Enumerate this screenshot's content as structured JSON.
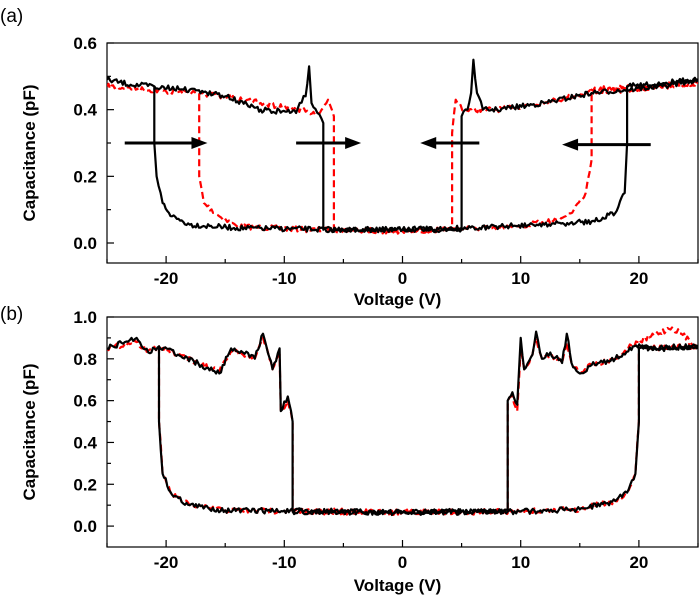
{
  "chart_data": [
    {
      "panel_label": "(a)",
      "type": "line",
      "xlabel": "Voltage (V)",
      "ylabel": "Capacitance (pF)",
      "xlim": [
        -25,
        25
      ],
      "ylim": [
        -0.06,
        0.6
      ],
      "xticks": [
        -20,
        -10,
        0,
        10,
        20
      ],
      "yticks": [
        0.0,
        0.2,
        0.4,
        0.6
      ],
      "ytick_labels": [
        "0.0",
        "0.2",
        "0.4",
        "0.6"
      ],
      "grid": false,
      "series": [
        {
          "color": "#000000",
          "style": "solid",
          "points": [
            [
              -25,
              0.49
            ],
            [
              -23,
              0.475
            ],
            [
              -21,
              0.47
            ],
            [
              -21,
              0.3
            ],
            [
              -20.8,
              0.2
            ],
            [
              -20.3,
              0.12
            ],
            [
              -19.5,
              0.08
            ],
            [
              -18,
              0.055
            ],
            [
              -14,
              0.045
            ],
            [
              -5,
              0.04
            ],
            [
              0,
              0.04
            ],
            [
              5,
              0.04
            ],
            [
              5,
              0.38
            ],
            [
              5.5,
              0.4
            ],
            [
              5.8,
              0.45
            ],
            [
              6,
              0.55
            ],
            [
              6.3,
              0.45
            ],
            [
              6.8,
              0.4
            ],
            [
              8,
              0.4
            ],
            [
              12,
              0.42
            ],
            [
              16,
              0.45
            ],
            [
              19,
              0.46
            ],
            [
              22,
              0.47
            ],
            [
              25,
              0.49
            ],
            [
              25,
              0.49
            ],
            [
              19,
              0.47
            ],
            [
              19,
              0.3
            ],
            [
              18.8,
              0.15
            ],
            [
              18,
              0.09
            ],
            [
              16,
              0.065
            ],
            [
              12,
              0.055
            ],
            [
              5,
              0.045
            ],
            [
              0,
              0.04
            ],
            [
              -6.7,
              0.04
            ],
            [
              -6.7,
              0.36
            ],
            [
              -7.2,
              0.39
            ],
            [
              -7.7,
              0.42
            ],
            [
              -7.9,
              0.53
            ],
            [
              -8.2,
              0.44
            ],
            [
              -8.7,
              0.42
            ],
            [
              -9,
              0.39
            ],
            [
              -12,
              0.4
            ],
            [
              -15,
              0.44
            ],
            [
              -18,
              0.46
            ],
            [
              -21,
              0.47
            ]
          ]
        },
        {
          "color": "#ff0000",
          "style": "dashed",
          "points": [
            [
              -25,
              0.47
            ],
            [
              -20,
              0.455
            ],
            [
              -17.2,
              0.45
            ],
            [
              -17.2,
              0.2
            ],
            [
              -16.8,
              0.12
            ],
            [
              -15.5,
              0.08
            ],
            [
              -14,
              0.05
            ],
            [
              -8,
              0.04
            ],
            [
              0,
              0.035
            ],
            [
              4.2,
              0.04
            ],
            [
              4.2,
              0.33
            ],
            [
              4.5,
              0.43
            ],
            [
              5.2,
              0.4
            ],
            [
              8,
              0.4
            ],
            [
              12,
              0.42
            ],
            [
              16,
              0.455
            ],
            [
              20,
              0.46
            ],
            [
              25,
              0.48
            ],
            [
              25,
              0.48
            ],
            [
              16,
              0.46
            ],
            [
              16,
              0.25
            ],
            [
              15.5,
              0.15
            ],
            [
              14.5,
              0.1
            ],
            [
              13,
              0.07
            ],
            [
              10,
              0.05
            ],
            [
              4,
              0.04
            ],
            [
              0,
              0.035
            ],
            [
              -5.8,
              0.04
            ],
            [
              -5.8,
              0.38
            ],
            [
              -6.3,
              0.43
            ],
            [
              -7,
              0.39
            ],
            [
              -9,
              0.4
            ],
            [
              -12,
              0.42
            ],
            [
              -15,
              0.44
            ],
            [
              -17.2,
              0.45
            ]
          ]
        }
      ],
      "arrows": [
        {
          "from": [
            -23.5,
            0.3
          ],
          "to": [
            -16.5,
            0.3
          ],
          "direction": "right"
        },
        {
          "from": [
            -9,
            0.3
          ],
          "to": [
            -3.5,
            0.3
          ],
          "direction": "right"
        },
        {
          "from": [
            6.5,
            0.3
          ],
          "to": [
            1.5,
            0.3
          ],
          "direction": "left"
        },
        {
          "from": [
            21,
            0.295
          ],
          "to": [
            13.5,
            0.295
          ],
          "direction": "left"
        }
      ]
    },
    {
      "panel_label": "(b)",
      "type": "line",
      "xlabel": "Voltage (V)",
      "ylabel": "Capacitance (pF)",
      "xlim": [
        -25,
        25
      ],
      "ylim": [
        -0.1,
        1.0
      ],
      "xticks": [
        -20,
        -10,
        0,
        10,
        20
      ],
      "yticks": [
        0.0,
        0.2,
        0.4,
        0.6,
        0.8,
        1.0
      ],
      "ytick_labels": [
        "0.0",
        "0.2",
        "0.4",
        "0.6",
        "0.8",
        "1.0"
      ],
      "grid": false,
      "series": [
        {
          "color": "#000000",
          "style": "solid",
          "points": [
            [
              -25,
              0.85
            ],
            [
              -23.5,
              0.88
            ],
            [
              -22.5,
              0.9
            ],
            [
              -21.5,
              0.83
            ],
            [
              -20.6,
              0.86
            ],
            [
              -20.6,
              0.5
            ],
            [
              -20.3,
              0.25
            ],
            [
              -19.5,
              0.15
            ],
            [
              -18,
              0.1
            ],
            [
              -15,
              0.075
            ],
            [
              -5,
              0.07
            ],
            [
              0,
              0.065
            ],
            [
              5,
              0.07
            ],
            [
              8.9,
              0.07
            ],
            [
              8.9,
              0.6
            ],
            [
              9.3,
              0.64
            ],
            [
              9.7,
              0.58
            ],
            [
              10,
              0.9
            ],
            [
              10.3,
              0.75
            ],
            [
              11,
              0.82
            ],
            [
              11.3,
              0.93
            ],
            [
              11.8,
              0.8
            ],
            [
              12.5,
              0.83
            ],
            [
              13.5,
              0.78
            ],
            [
              13.9,
              0.92
            ],
            [
              14.3,
              0.78
            ],
            [
              15,
              0.73
            ],
            [
              16,
              0.77
            ],
            [
              18,
              0.8
            ],
            [
              19.5,
              0.86
            ],
            [
              22,
              0.85
            ],
            [
              25,
              0.86
            ],
            [
              25,
              0.86
            ],
            [
              20,
              0.85
            ],
            [
              20,
              0.5
            ],
            [
              19.7,
              0.25
            ],
            [
              19,
              0.16
            ],
            [
              18,
              0.12
            ],
            [
              15,
              0.08
            ],
            [
              10,
              0.07
            ],
            [
              0,
              0.065
            ],
            [
              -9.3,
              0.07
            ],
            [
              -9.3,
              0.5
            ],
            [
              -9.7,
              0.62
            ],
            [
              -10.3,
              0.55
            ],
            [
              -10.4,
              0.85
            ],
            [
              -11,
              0.75
            ],
            [
              -11.8,
              0.92
            ],
            [
              -12.5,
              0.8
            ],
            [
              -13.5,
              0.83
            ],
            [
              -14.5,
              0.85
            ],
            [
              -15.5,
              0.73
            ],
            [
              -17,
              0.77
            ],
            [
              -19,
              0.82
            ],
            [
              -20.6,
              0.86
            ]
          ]
        },
        {
          "color": "#ff0000",
          "style": "dashed",
          "points": [
            [
              -25,
              0.85
            ],
            [
              -23.5,
              0.87
            ],
            [
              -22.5,
              0.88
            ],
            [
              -21.5,
              0.84
            ],
            [
              -20.6,
              0.86
            ],
            [
              -20.6,
              0.5
            ],
            [
              -20.3,
              0.25
            ],
            [
              -19.5,
              0.15
            ],
            [
              -18,
              0.1
            ],
            [
              -15,
              0.075
            ],
            [
              -5,
              0.07
            ],
            [
              0,
              0.065
            ],
            [
              5,
              0.07
            ],
            [
              8.9,
              0.07
            ],
            [
              8.9,
              0.6
            ],
            [
              9.3,
              0.62
            ],
            [
              9.7,
              0.55
            ],
            [
              10,
              0.85
            ],
            [
              10.3,
              0.75
            ],
            [
              11,
              0.82
            ],
            [
              11.3,
              0.9
            ],
            [
              11.8,
              0.8
            ],
            [
              12.5,
              0.82
            ],
            [
              13.5,
              0.78
            ],
            [
              13.9,
              0.88
            ],
            [
              14.3,
              0.78
            ],
            [
              15,
              0.74
            ],
            [
              16,
              0.77
            ],
            [
              18,
              0.8
            ],
            [
              19.5,
              0.87
            ],
            [
              22.8,
              0.95
            ],
            [
              25,
              0.86
            ],
            [
              25,
              0.86
            ],
            [
              20,
              0.85
            ],
            [
              20,
              0.5
            ],
            [
              19.7,
              0.25
            ],
            [
              19,
              0.16
            ],
            [
              18,
              0.12
            ],
            [
              15,
              0.08
            ],
            [
              10,
              0.07
            ],
            [
              0,
              0.065
            ],
            [
              -9.3,
              0.07
            ],
            [
              -9.3,
              0.5
            ],
            [
              -9.7,
              0.6
            ],
            [
              -10.3,
              0.55
            ],
            [
              -10.4,
              0.82
            ],
            [
              -11,
              0.75
            ],
            [
              -11.8,
              0.9
            ],
            [
              -12.5,
              0.8
            ],
            [
              -13.5,
              0.82
            ],
            [
              -14.5,
              0.84
            ],
            [
              -15.5,
              0.74
            ],
            [
              -17,
              0.77
            ],
            [
              -19,
              0.82
            ],
            [
              -20.6,
              0.86
            ]
          ]
        }
      ]
    }
  ]
}
